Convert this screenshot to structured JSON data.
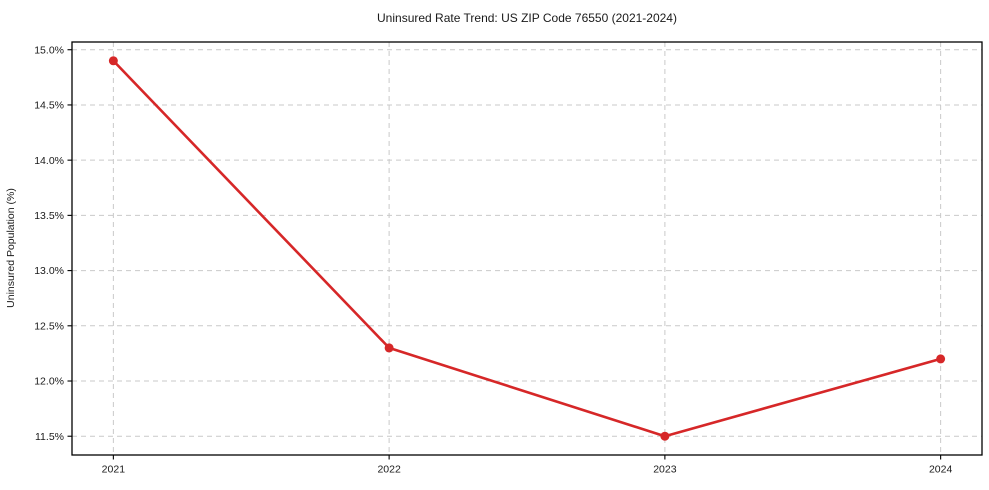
{
  "figure": {
    "background": "#ffffff"
  },
  "chart_data": {
    "type": "line",
    "title": "Uninsured Rate Trend: US ZIP Code 76550 (2021-2024)",
    "xlabel": "",
    "ylabel": "Uninsured Population (%)",
    "categories": [
      "2021",
      "2022",
      "2023",
      "2024"
    ],
    "x": [
      2021,
      2022,
      2023,
      2024
    ],
    "series": [
      {
        "name": "Uninsured rate",
        "values": [
          14.9,
          12.3,
          11.5,
          12.2
        ],
        "color": "#d62728",
        "marker": "circle"
      }
    ],
    "y_ticks": [
      11.5,
      12.0,
      12.5,
      13.0,
      13.5,
      14.0,
      14.5,
      15.0
    ],
    "y_tick_labels": [
      "11.5%",
      "12.0%",
      "12.5%",
      "13.0%",
      "13.5%",
      "14.0%",
      "14.5%",
      "15.0%"
    ],
    "xlim": [
      2020.85,
      2024.15
    ],
    "ylim": [
      11.33,
      15.07
    ],
    "grid": true,
    "grid_style": "dashed",
    "legend": false,
    "colors": {
      "grid": "#c9c9c9",
      "frame": "#000000",
      "text": "#1a1a1a",
      "background": "#ffffff"
    }
  }
}
